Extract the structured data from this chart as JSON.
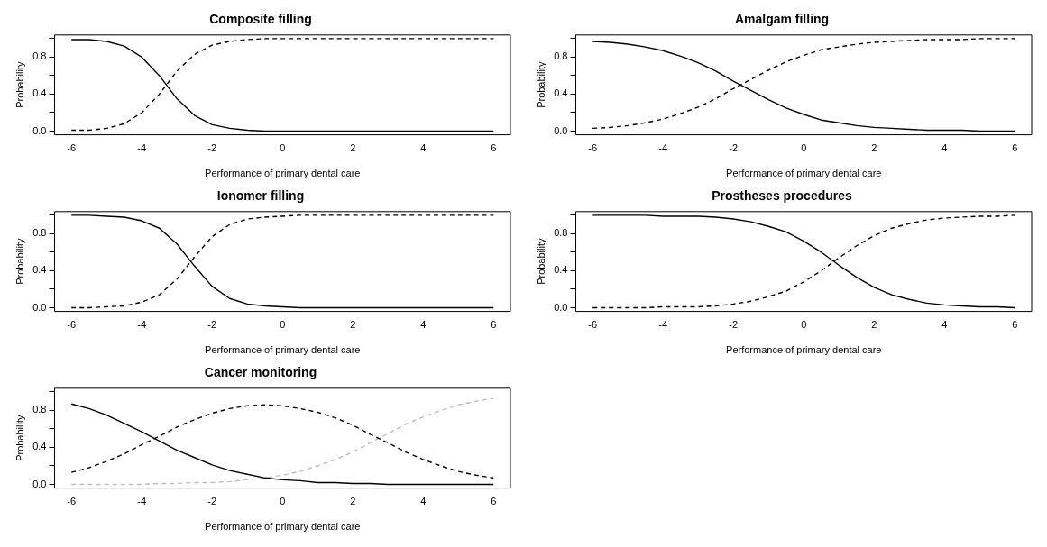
{
  "chart_data": [
    {
      "type": "line",
      "title": "Composite filling",
      "xlabel": "Performance of primary dental care",
      "ylabel": "Probability",
      "x": [
        -6,
        -5.5,
        -5,
        -4.5,
        -4,
        -3.5,
        -3,
        -2.5,
        -2,
        -1.5,
        -1,
        -0.5,
        0,
        0.5,
        1,
        1.5,
        2,
        2.5,
        3,
        3.5,
        4,
        4.5,
        5,
        5.5,
        6
      ],
      "xlim": [
        -6.48,
        6.48
      ],
      "xticks": [
        -6,
        -4,
        -2,
        0,
        2,
        4,
        6
      ],
      "ylim": [
        -0.04,
        1.04
      ],
      "yticks": [
        {
          "value": 0,
          "label": "0.0"
        },
        {
          "value": 0.2,
          "label": null
        },
        {
          "value": 0.4,
          "label": "0.4"
        },
        {
          "value": 0.6,
          "label": null
        },
        {
          "value": 0.8,
          "label": "0.8"
        },
        {
          "value": 1,
          "label": null
        }
      ],
      "series": [
        {
          "color": "#000000",
          "line_style": "solid",
          "values": [
            0.99,
            0.99,
            0.97,
            0.92,
            0.8,
            0.6,
            0.35,
            0.17,
            0.07,
            0.03,
            0.01,
            0,
            0,
            0,
            0,
            0,
            0,
            0,
            0,
            0,
            0,
            0,
            0,
            0,
            0
          ]
        },
        {
          "color": "#000000",
          "line_style": "dashed",
          "values": [
            0.01,
            0.01,
            0.03,
            0.08,
            0.2,
            0.4,
            0.65,
            0.83,
            0.93,
            0.97,
            0.99,
            1,
            1,
            1,
            1,
            1,
            1,
            1,
            1,
            1,
            1,
            1,
            1,
            1,
            1
          ]
        }
      ]
    },
    {
      "type": "line",
      "title": "Amalgam filling",
      "xlabel": "Performance of primary dental care",
      "ylabel": "Probability",
      "x": [
        -6,
        -5.5,
        -5,
        -4.5,
        -4,
        -3.5,
        -3,
        -2.5,
        -2,
        -1.5,
        -1,
        -0.5,
        0,
        0.5,
        1,
        1.5,
        2,
        2.5,
        3,
        3.5,
        4,
        4.5,
        5,
        5.5,
        6
      ],
      "xlim": [
        -6.48,
        6.48
      ],
      "xticks": [
        -6,
        -4,
        -2,
        0,
        2,
        4,
        6
      ],
      "ylim": [
        -0.04,
        1.04
      ],
      "yticks": [
        {
          "value": 0,
          "label": "0.0"
        },
        {
          "value": 0.2,
          "label": null
        },
        {
          "value": 0.4,
          "label": "0.4"
        },
        {
          "value": 0.6,
          "label": null
        },
        {
          "value": 0.8,
          "label": "0.8"
        },
        {
          "value": 1,
          "label": null
        }
      ],
      "series": [
        {
          "color": "#000000",
          "line_style": "solid",
          "values": [
            0.97,
            0.96,
            0.94,
            0.91,
            0.87,
            0.81,
            0.74,
            0.65,
            0.54,
            0.44,
            0.34,
            0.25,
            0.18,
            0.12,
            0.09,
            0.06,
            0.04,
            0.03,
            0.02,
            0.01,
            0.01,
            0.01,
            0,
            0,
            0
          ]
        },
        {
          "color": "#000000",
          "line_style": "dashed",
          "values": [
            0.03,
            0.04,
            0.06,
            0.09,
            0.13,
            0.19,
            0.26,
            0.35,
            0.46,
            0.56,
            0.66,
            0.75,
            0.82,
            0.88,
            0.91,
            0.94,
            0.96,
            0.97,
            0.98,
            0.99,
            0.99,
            0.99,
            1,
            1,
            1
          ]
        }
      ]
    },
    {
      "type": "line",
      "title": "Ionomer filling",
      "xlabel": "Performance of primary dental care",
      "ylabel": "Probability",
      "x": [
        -6,
        -5.5,
        -5,
        -4.5,
        -4,
        -3.5,
        -3,
        -2.5,
        -2,
        -1.5,
        -1,
        -0.5,
        0,
        0.5,
        1,
        1.5,
        2,
        2.5,
        3,
        3.5,
        4,
        4.5,
        5,
        5.5,
        6
      ],
      "xlim": [
        -6.48,
        6.48
      ],
      "xticks": [
        -6,
        -4,
        -2,
        0,
        2,
        4,
        6
      ],
      "ylim": [
        -0.04,
        1.04
      ],
      "yticks": [
        {
          "value": 0,
          "label": "0.0"
        },
        {
          "value": 0.2,
          "label": null
        },
        {
          "value": 0.4,
          "label": "0.4"
        },
        {
          "value": 0.6,
          "label": null
        },
        {
          "value": 0.8,
          "label": "0.8"
        },
        {
          "value": 1,
          "label": null
        }
      ],
      "series": [
        {
          "color": "#000000",
          "line_style": "solid",
          "values": [
            1,
            1,
            0.99,
            0.98,
            0.94,
            0.86,
            0.69,
            0.45,
            0.23,
            0.1,
            0.04,
            0.02,
            0.01,
            0,
            0,
            0,
            0,
            0,
            0,
            0,
            0,
            0,
            0,
            0,
            0
          ]
        },
        {
          "color": "#000000",
          "line_style": "dashed",
          "values": [
            0,
            0,
            0.01,
            0.02,
            0.06,
            0.14,
            0.31,
            0.55,
            0.77,
            0.9,
            0.96,
            0.98,
            0.99,
            1,
            1,
            1,
            1,
            1,
            1,
            1,
            1,
            1,
            1,
            1,
            1
          ]
        }
      ]
    },
    {
      "type": "line",
      "title": "Prostheses procedures",
      "xlabel": "Performance of primary dental care",
      "ylabel": "Probability",
      "x": [
        -6,
        -5.5,
        -5,
        -4.5,
        -4,
        -3.5,
        -3,
        -2.5,
        -2,
        -1.5,
        -1,
        -0.5,
        0,
        0.5,
        1,
        1.5,
        2,
        2.5,
        3,
        3.5,
        4,
        4.5,
        5,
        5.5,
        6
      ],
      "xlim": [
        -6.48,
        6.48
      ],
      "xticks": [
        -6,
        -4,
        -2,
        0,
        2,
        4,
        6
      ],
      "ylim": [
        -0.04,
        1.04
      ],
      "yticks": [
        {
          "value": 0,
          "label": "0.0"
        },
        {
          "value": 0.2,
          "label": null
        },
        {
          "value": 0.4,
          "label": "0.4"
        },
        {
          "value": 0.6,
          "label": null
        },
        {
          "value": 0.8,
          "label": "0.8"
        },
        {
          "value": 1,
          "label": null
        }
      ],
      "series": [
        {
          "color": "#000000",
          "line_style": "solid",
          "values": [
            1,
            1,
            1,
            1,
            0.99,
            0.99,
            0.99,
            0.98,
            0.96,
            0.93,
            0.88,
            0.82,
            0.72,
            0.6,
            0.46,
            0.33,
            0.22,
            0.14,
            0.09,
            0.05,
            0.03,
            0.02,
            0.01,
            0.01,
            0
          ]
        },
        {
          "color": "#000000",
          "line_style": "dashed",
          "values": [
            0,
            0,
            0,
            0,
            0.01,
            0.01,
            0.01,
            0.02,
            0.04,
            0.07,
            0.12,
            0.18,
            0.28,
            0.4,
            0.54,
            0.67,
            0.78,
            0.86,
            0.91,
            0.95,
            0.97,
            0.98,
            0.99,
            0.99,
            1
          ]
        }
      ]
    },
    {
      "type": "line",
      "title": "Cancer monitoring",
      "xlabel": "Performance of primary dental care",
      "ylabel": "Probability",
      "x": [
        -6,
        -5.5,
        -5,
        -4.5,
        -4,
        -3.5,
        -3,
        -2.5,
        -2,
        -1.5,
        -1,
        -0.5,
        0,
        0.5,
        1,
        1.5,
        2,
        2.5,
        3,
        3.5,
        4,
        4.5,
        5,
        5.5,
        6
      ],
      "xlim": [
        -6.48,
        6.48
      ],
      "xticks": [
        -6,
        -4,
        -2,
        0,
        2,
        4,
        6
      ],
      "ylim": [
        -0.04,
        1.04
      ],
      "yticks": [
        {
          "value": 0,
          "label": "0.0"
        },
        {
          "value": 0.2,
          "label": null
        },
        {
          "value": 0.4,
          "label": "0.4"
        },
        {
          "value": 0.6,
          "label": null
        },
        {
          "value": 0.8,
          "label": "0.8"
        },
        {
          "value": 1,
          "label": null
        }
      ],
      "series": [
        {
          "color": "#000000",
          "line_style": "solid",
          "values": [
            0.87,
            0.82,
            0.75,
            0.66,
            0.57,
            0.47,
            0.37,
            0.29,
            0.21,
            0.15,
            0.11,
            0.07,
            0.05,
            0.04,
            0.02,
            0.02,
            0.01,
            0.01,
            0,
            0,
            0,
            0,
            0,
            0,
            0
          ]
        },
        {
          "color": "#000000",
          "line_style": "dashed",
          "values": [
            0.13,
            0.18,
            0.25,
            0.33,
            0.43,
            0.52,
            0.62,
            0.7,
            0.77,
            0.82,
            0.85,
            0.86,
            0.85,
            0.82,
            0.78,
            0.72,
            0.64,
            0.54,
            0.45,
            0.35,
            0.27,
            0.2,
            0.14,
            0.1,
            0.07
          ]
        },
        {
          "color": "#bebebe",
          "line_style": "dashed",
          "values": [
            0,
            0,
            0,
            0,
            0,
            0.01,
            0.01,
            0.02,
            0.02,
            0.03,
            0.05,
            0.07,
            0.1,
            0.14,
            0.2,
            0.27,
            0.35,
            0.45,
            0.55,
            0.65,
            0.73,
            0.8,
            0.86,
            0.9,
            0.93
          ]
        }
      ]
    }
  ]
}
